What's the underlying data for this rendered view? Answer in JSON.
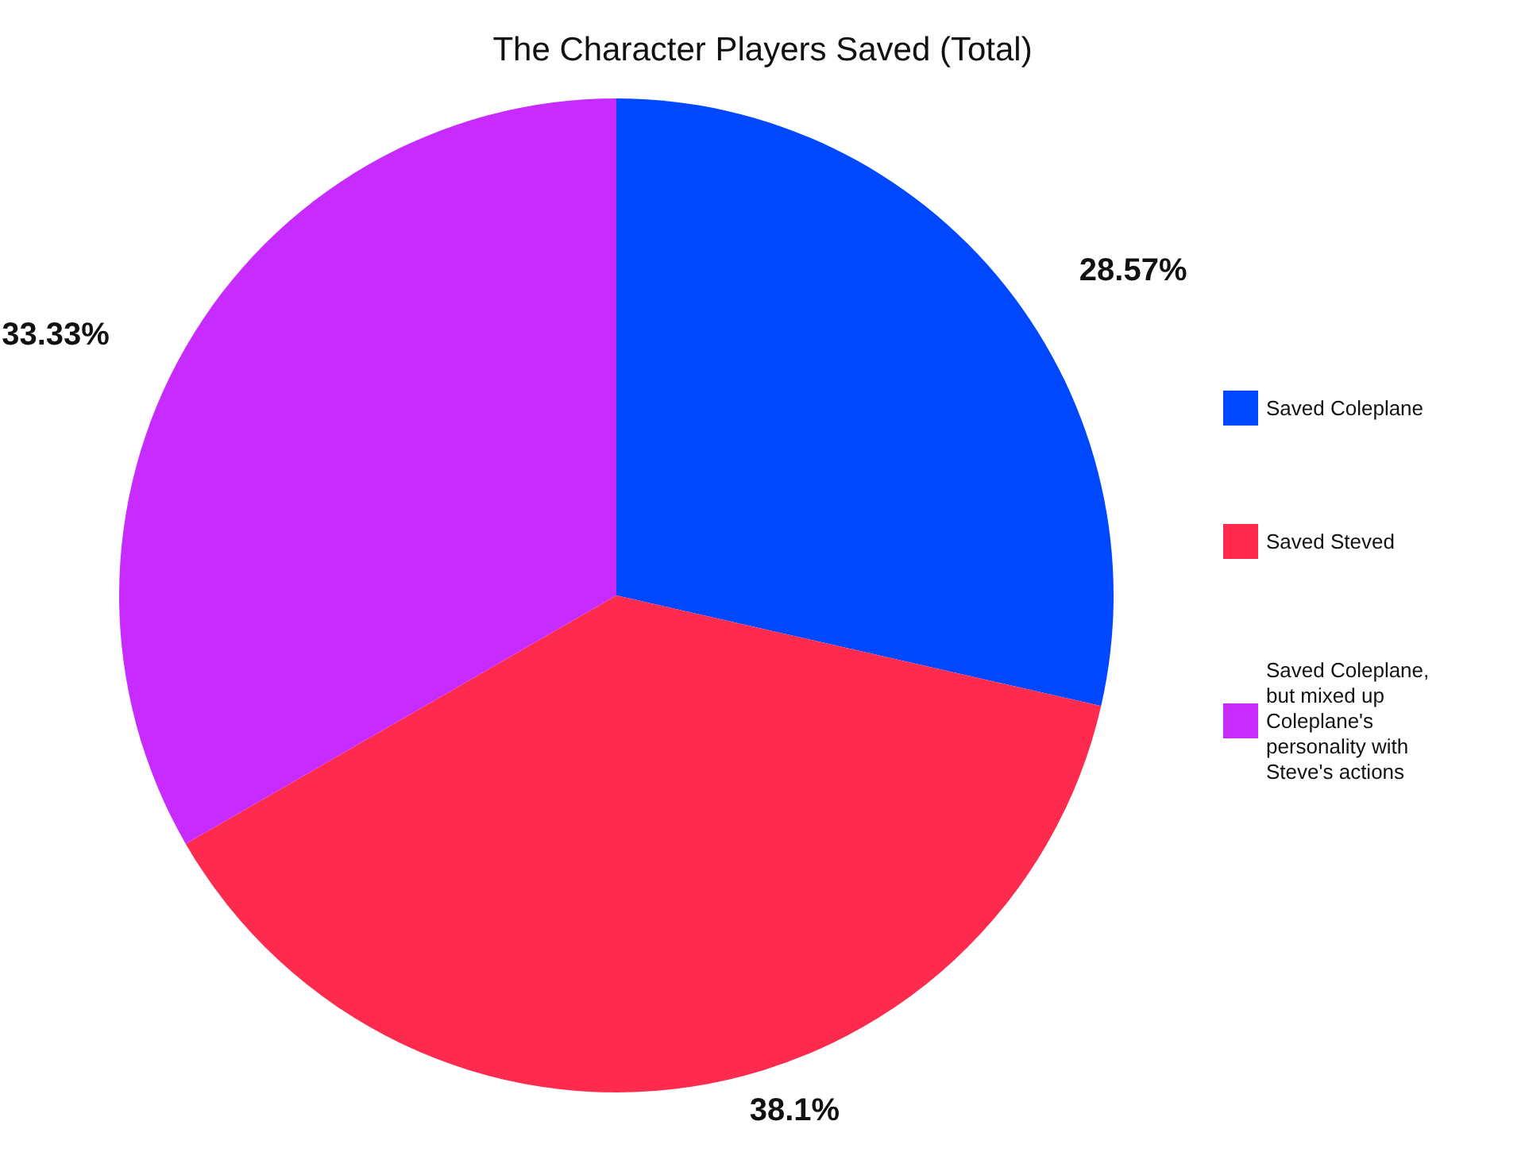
{
  "chart_data": {
    "type": "pie",
    "title": "The Character Players Saved (Total)",
    "categories": [
      "Saved Coleplane",
      "Saved Steved",
      "Saved Coleplane, but mixed up Coleplane's personality with Steve's actions"
    ],
    "values": [
      28.57,
      38.1,
      33.33
    ],
    "colors": [
      "#0048ff",
      "#ff2b4e",
      "#c72bff"
    ],
    "value_labels": [
      "28.57%",
      "38.1%",
      "33.33%"
    ],
    "legend": "right"
  }
}
